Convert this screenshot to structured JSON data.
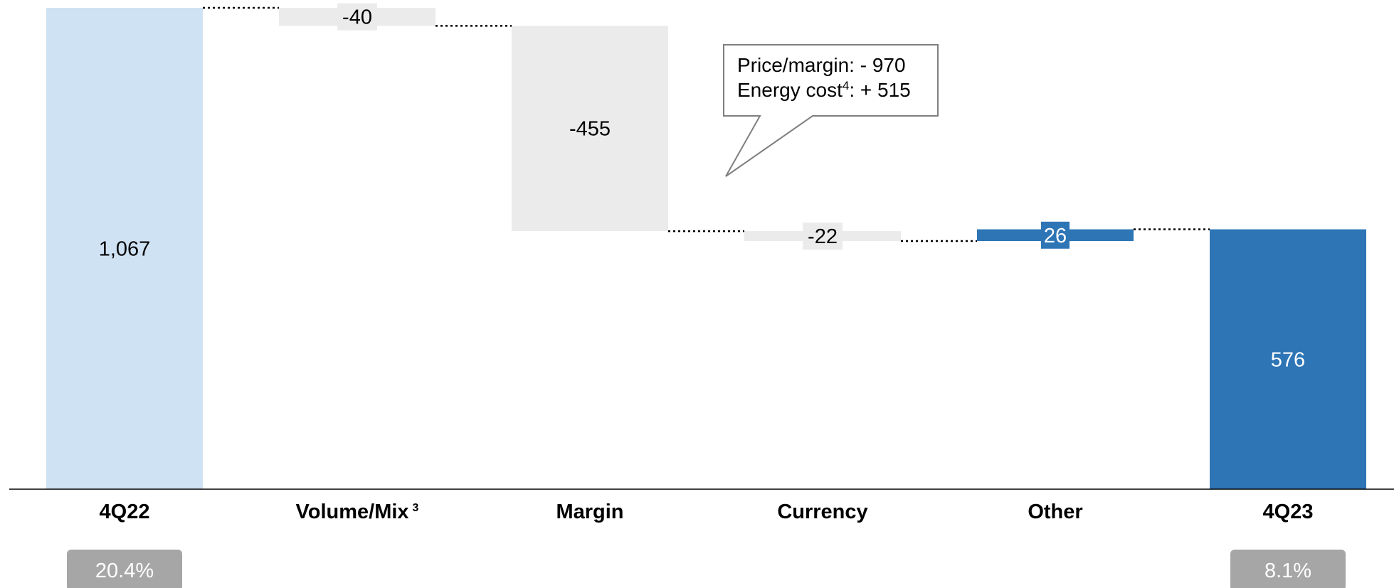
{
  "chart_data": {
    "type": "waterfall",
    "ylim": [
      0,
      1067
    ],
    "colors": {
      "start_bar": "#cfe2f3",
      "negative_bar": "#ebebeb",
      "positive_bar": "#2e75b6",
      "end_bar": "#2e75b6",
      "badge": "#a6a6a6",
      "connector": "#000000",
      "callout_border": "#7f7f7f"
    },
    "bars": [
      {
        "category": "4Q22",
        "label": "1,067",
        "value": 1067,
        "kind": "start"
      },
      {
        "category": "Volume/Mix",
        "superscript": "3",
        "label": "-40",
        "value": -40,
        "kind": "negative"
      },
      {
        "category": "Margin",
        "label": "-455",
        "value": -455,
        "kind": "negative"
      },
      {
        "category": "Currency",
        "label": "-22",
        "value": -22,
        "kind": "negative"
      },
      {
        "category": "Other",
        "label": "26",
        "value": 26,
        "kind": "positive"
      },
      {
        "category": "4Q23",
        "label": "576",
        "value": 576,
        "kind": "end"
      }
    ],
    "callout": {
      "line1": "Price/margin: - 970",
      "line2_main": "Energy cost",
      "line2_sup": "4",
      "line2_rest": ": + 515"
    },
    "badges": [
      {
        "under": "4Q22",
        "text": "20.4%"
      },
      {
        "under": "4Q23",
        "text": "8.1%"
      }
    ]
  }
}
